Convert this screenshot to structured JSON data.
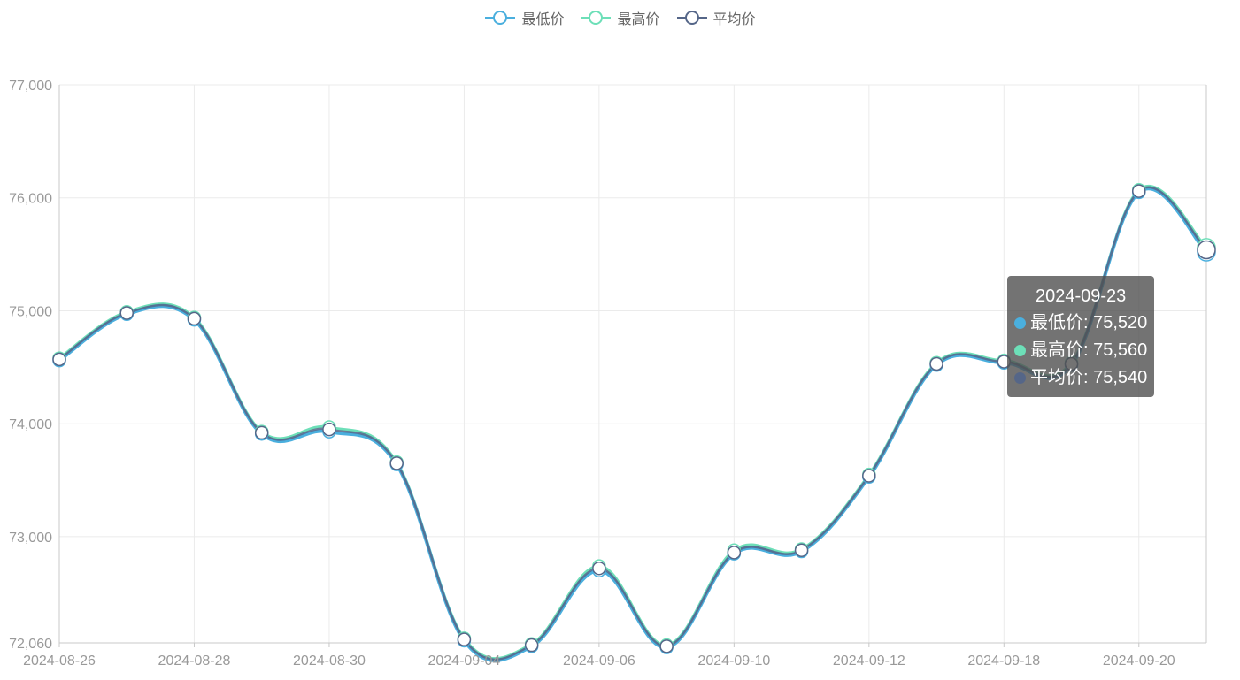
{
  "colors": {
    "low": "#4aafde",
    "high": "#6ddfb8",
    "avg": "#556688",
    "axis": "#c8c8c8",
    "grid": "#ebebeb",
    "tick_text": "#999999"
  },
  "legend": [
    {
      "name": "最低价",
      "color": "#4aafde",
      "icon": "circle-line-icon"
    },
    {
      "name": "最高价",
      "color": "#6ddfb8",
      "icon": "circle-line-icon"
    },
    {
      "name": "平均价",
      "color": "#556688",
      "icon": "circle-line-icon"
    }
  ],
  "tooltip": {
    "title": "2024-09-23",
    "rows": [
      {
        "label": "最低价: 75,520",
        "color": "#4aafde"
      },
      {
        "label": "最高价: 75,560",
        "color": "#6ddfb8"
      },
      {
        "label": "平均价: 75,540",
        "color": "#556688"
      }
    ]
  },
  "chart_data": {
    "type": "line",
    "smooth": true,
    "x": [
      "2024-08-26",
      "2024-08-27",
      "2024-08-28",
      "2024-08-29",
      "2024-08-30",
      "2024-09-02",
      "2024-09-04",
      "2024-09-05",
      "2024-09-06",
      "2024-09-09",
      "2024-09-10",
      "2024-09-11",
      "2024-09-12",
      "2024-09-13",
      "2024-09-18",
      "2024-09-19",
      "2024-09-20",
      "2024-09-23"
    ],
    "x_tick_labels": [
      "2024-08-26",
      "2024-08-28",
      "2024-08-30",
      "2024-09-04",
      "2024-09-06",
      "2024-09-10",
      "2024-09-12",
      "2024-09-18",
      "2024-09-20"
    ],
    "x_tick_label_every": 2,
    "y_tick_labels": [
      "77,000",
      "76,000",
      "75,000",
      "74,000",
      "73,000",
      "72,060"
    ],
    "ylim": [
      72060,
      77000
    ],
    "grid": true,
    "legend_position": "top-center",
    "series": [
      {
        "name": "最低价",
        "values": [
          74560,
          74970,
          74920,
          73910,
          73930,
          73640,
          72080,
          72030,
          72700,
          72020,
          72850,
          72870,
          73530,
          74520,
          74540,
          74520,
          76050,
          75520
        ]
      },
      {
        "name": "最高价",
        "values": [
          74580,
          74990,
          74940,
          73930,
          73970,
          73660,
          72100,
          72050,
          72740,
          72040,
          72880,
          72890,
          73550,
          74540,
          74560,
          74540,
          76070,
          75560
        ]
      },
      {
        "name": "平均价",
        "values": [
          74570,
          74980,
          74930,
          73920,
          73950,
          73650,
          72090,
          72040,
          72720,
          72030,
          72860,
          72880,
          73540,
          74530,
          74550,
          74530,
          76060,
          75540
        ]
      }
    ]
  }
}
